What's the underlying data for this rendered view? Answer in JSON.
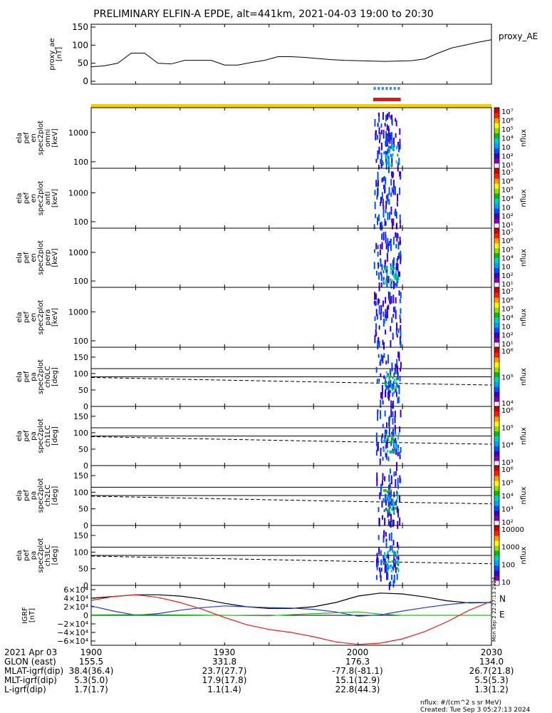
{
  "title": "PRELIMINARY ELFIN-A EPDE, alt=441km, 2021-04-03 19:00 to 20:30",
  "colors": {
    "axis": "#000000",
    "yellow_bar": "#f5d000",
    "red_bar": "#e8141e",
    "blue_bar": "#3b8ae6",
    "igrf_black": "#000000",
    "igrf_blue": "#1f3fd0",
    "igrf_green": "#1fbf1f",
    "igrf_red": "#e02020"
  },
  "chart_data": [
    {
      "type": "line",
      "name": "proxy_ae",
      "ylabel_lines": [
        "proxy_ae",
        "[nT]"
      ],
      "legend": "proxy_AE",
      "ylim": [
        0,
        150
      ],
      "yticks": [
        "0",
        "50",
        "100",
        "150"
      ],
      "xlim": [
        0,
        90
      ],
      "x": [
        0,
        3,
        6,
        9,
        12,
        15,
        18,
        21,
        24,
        27,
        30,
        33,
        36,
        39,
        42,
        45,
        48,
        51,
        54,
        57,
        60,
        63,
        66,
        69,
        72,
        75,
        78,
        81,
        84,
        87,
        90
      ],
      "values": [
        40,
        43,
        50,
        78,
        78,
        50,
        48,
        58,
        58,
        58,
        45,
        45,
        52,
        58,
        68,
        68,
        66,
        63,
        60,
        58,
        57,
        56,
        55,
        56,
        57,
        62,
        78,
        92,
        100,
        108,
        115
      ]
    },
    {
      "type": "status",
      "name": "fgm-status",
      "blue_segments_min": [
        [
          63.5,
          64.0
        ],
        [
          64.4,
          64.9
        ],
        [
          65.3,
          65.8
        ],
        [
          66.2,
          66.7
        ],
        [
          67.1,
          67.6
        ],
        [
          68.0,
          68.5
        ],
        [
          68.9,
          69.4
        ]
      ],
      "red_segment_min": [
        63.4,
        69.6
      ],
      "yellow_segment_min": [
        0,
        90
      ]
    },
    {
      "type": "heatmap",
      "name": "omni-energy-spectrogram",
      "ylabel_lines": [
        "ela",
        "pef",
        "en",
        "spec2plot",
        "omni",
        "[keV]"
      ],
      "yscale": "log",
      "ylim": [
        60,
        7000
      ],
      "yticks": [
        "100",
        "1000"
      ],
      "colorbar": {
        "ticks": [
          "10⁷",
          "10⁶",
          "10⁵",
          "10⁴",
          "10⁳",
          "10²",
          "10¹"
        ],
        "label": "nflux"
      }
    },
    {
      "type": "heatmap",
      "name": "anti-energy-spectrogram",
      "ylabel_lines": [
        "ela",
        "pef",
        "en",
        "spec2plot",
        "anti",
        "[keV]"
      ],
      "yscale": "log",
      "ylim": [
        60,
        7000
      ],
      "yticks": [
        "100",
        "1000"
      ],
      "colorbar": {
        "ticks": [
          "10⁷",
          "10⁶",
          "10⁵",
          "10⁴",
          "10⁳",
          "10²",
          "10¹"
        ],
        "label": "nflux"
      }
    },
    {
      "type": "heatmap",
      "name": "perp-energy-spectrogram",
      "ylabel_lines": [
        "ela",
        "pef",
        "en",
        "spec2plot",
        "perp",
        "[keV]"
      ],
      "yscale": "log",
      "ylim": [
        60,
        7000
      ],
      "yticks": [
        "100",
        "1000"
      ],
      "colorbar": {
        "ticks": [
          "10⁷",
          "10⁶",
          "10⁵",
          "10⁴",
          "10⁳",
          "10²",
          "10¹"
        ],
        "label": "nflux"
      }
    },
    {
      "type": "heatmap",
      "name": "para-energy-spectrogram",
      "ylabel_lines": [
        "ela",
        "pef",
        "en",
        "spec2plot",
        "para",
        "[keV]"
      ],
      "yscale": "log",
      "ylim": [
        60,
        7000
      ],
      "yticks": [
        "100",
        "1000"
      ],
      "colorbar": {
        "ticks": [
          "10⁷",
          "10⁶",
          "10⁵",
          "10⁴",
          "10⁳",
          "10²",
          "10¹"
        ],
        "label": "nflux"
      }
    },
    {
      "type": "heatmap",
      "name": "pa-ch0-spectrogram",
      "ylabel_lines": [
        "ela",
        "pef",
        "pa",
        "spec2plot",
        "ch0LC",
        "[deg]"
      ],
      "ylim": [
        0,
        180
      ],
      "yticks": [
        "0",
        "50",
        "100",
        "150"
      ],
      "hlines": [
        90,
        115
      ],
      "losscone": [
        [
          0,
          88
        ],
        [
          30,
          80
        ],
        [
          60,
          72
        ],
        [
          90,
          65
        ]
      ],
      "colorbar": {
        "ticks": [
          "10⁶",
          "10⁵",
          "10⁴"
        ],
        "label": "nflux"
      }
    },
    {
      "type": "heatmap",
      "name": "pa-ch1-spectrogram",
      "ylabel_lines": [
        "ela",
        "pef",
        "pa",
        "spec2plot",
        "ch1LC",
        "[deg]"
      ],
      "ylim": [
        0,
        180
      ],
      "yticks": [
        "0",
        "50",
        "100",
        "150"
      ],
      "hlines": [
        90,
        115
      ],
      "losscone": [
        [
          0,
          88
        ],
        [
          30,
          80
        ],
        [
          60,
          72
        ],
        [
          90,
          65
        ]
      ],
      "colorbar": {
        "ticks": [
          "10⁶",
          "10⁵",
          "10⁴",
          "10³"
        ],
        "label": "nflux"
      }
    },
    {
      "type": "heatmap",
      "name": "pa-ch2-spectrogram",
      "ylabel_lines": [
        "ela",
        "pef",
        "pa",
        "spec2plot",
        "ch2LC",
        "[deg]"
      ],
      "ylim": [
        0,
        180
      ],
      "yticks": [
        "0",
        "50",
        "100",
        "150"
      ],
      "hlines": [
        90,
        115
      ],
      "losscone": [
        [
          0,
          88
        ],
        [
          30,
          80
        ],
        [
          60,
          72
        ],
        [
          90,
          65
        ]
      ],
      "colorbar": {
        "ticks": [
          "10⁶",
          "10⁵",
          "10⁴",
          "10³",
          "10²"
        ],
        "label": "nflux"
      }
    },
    {
      "type": "heatmap",
      "name": "pa-ch3-spectrogram",
      "ylabel_lines": [
        "ela",
        "pef",
        "pa",
        "spec2plot",
        "ch3LC",
        "[deg]"
      ],
      "ylim": [
        0,
        180
      ],
      "yticks": [
        "0",
        "50",
        "100",
        "150"
      ],
      "hlines": [
        90,
        115
      ],
      "losscone": [
        [
          0,
          88
        ],
        [
          30,
          80
        ],
        [
          60,
          72
        ],
        [
          90,
          65
        ]
      ],
      "colorbar": {
        "ticks": [
          "10000",
          "1000",
          "100",
          "10"
        ],
        "label": "nflux"
      }
    },
    {
      "type": "line",
      "name": "igrf-field",
      "ylabel_lines": [
        "IGRF",
        "[nT]"
      ],
      "ylim": [
        -70000,
        70000
      ],
      "yticks": [
        "6×10⁴",
        "4×10⁴",
        "2×10⁴",
        "0",
        "−2×10⁴",
        "−4×10⁴",
        "−6×10⁴"
      ],
      "legend": [
        "N",
        "E"
      ],
      "series": [
        {
          "color_key": "igrf_black",
          "x": [
            0,
            5,
            10,
            15,
            20,
            25,
            30,
            35,
            40,
            45,
            50,
            55,
            60,
            65,
            70,
            75,
            80,
            85,
            90
          ],
          "values": [
            40000,
            44000,
            48000,
            48000,
            45000,
            38000,
            28000,
            20000,
            16000,
            16000,
            20000,
            30000,
            45000,
            52000,
            50000,
            43000,
            34000,
            29000,
            30000
          ]
        },
        {
          "color_key": "igrf_blue",
          "x": [
            0,
            5,
            10,
            15,
            20,
            25,
            30,
            35,
            40,
            45,
            50,
            55,
            60,
            65,
            70,
            75,
            80,
            85,
            90
          ],
          "values": [
            22000,
            10000,
            500,
            4000,
            12000,
            18000,
            22000,
            20000,
            18000,
            17000,
            14000,
            8000,
            -2000,
            1000,
            10000,
            18000,
            25000,
            30000,
            30000
          ]
        },
        {
          "color_key": "igrf_green",
          "x": [
            0,
            10,
            20,
            30,
            40,
            50,
            55,
            60,
            65,
            70,
            80,
            90
          ],
          "values": [
            1000,
            1500,
            1000,
            0,
            -1000,
            4000,
            6000,
            8000,
            3000,
            0,
            0,
            0
          ]
        },
        {
          "color_key": "igrf_red",
          "x": [
            0,
            5,
            10,
            15,
            20,
            25,
            30,
            35,
            40,
            45,
            50,
            55,
            60,
            65,
            70,
            75,
            80,
            85,
            90
          ],
          "values": [
            35000,
            44000,
            48000,
            42000,
            30000,
            14000,
            -5000,
            -22000,
            -33000,
            -40000,
            -50000,
            -62000,
            -68000,
            -65000,
            -55000,
            -38000,
            -15000,
            12000,
            33000
          ]
        }
      ]
    }
  ],
  "side_text": "Mon Sep  2 22:27:13 2024",
  "footer": {
    "label_col": [
      "2021 Apr 03",
      "GLON (east)",
      "MLAT-igrf(dip)",
      "MLT-igrf(dip)",
      "L-igrf(dip)"
    ],
    "time_labels": [
      "1900",
      "1930",
      "2000",
      "2030"
    ],
    "rows": [
      [
        "155.5",
        "331.8",
        "176.3",
        "134.0"
      ],
      [
        "38.4(36.4)",
        "23.7(27.7)",
        "-77.8(-81.1)",
        "26.7(21.8)"
      ],
      [
        "5.3(5.0)",
        "17.9(17.8)",
        "15.1(12.9)",
        "5.5(5.3)"
      ],
      [
        "1.7(1.7)",
        "1.1(1.4)",
        "22.8(44.3)",
        "1.3(1.2)"
      ]
    ],
    "unit_note": "nflux: #/(cm^2 s sr MeV)",
    "created": "Created: Tue Sep  3 05:27:13 2024"
  }
}
